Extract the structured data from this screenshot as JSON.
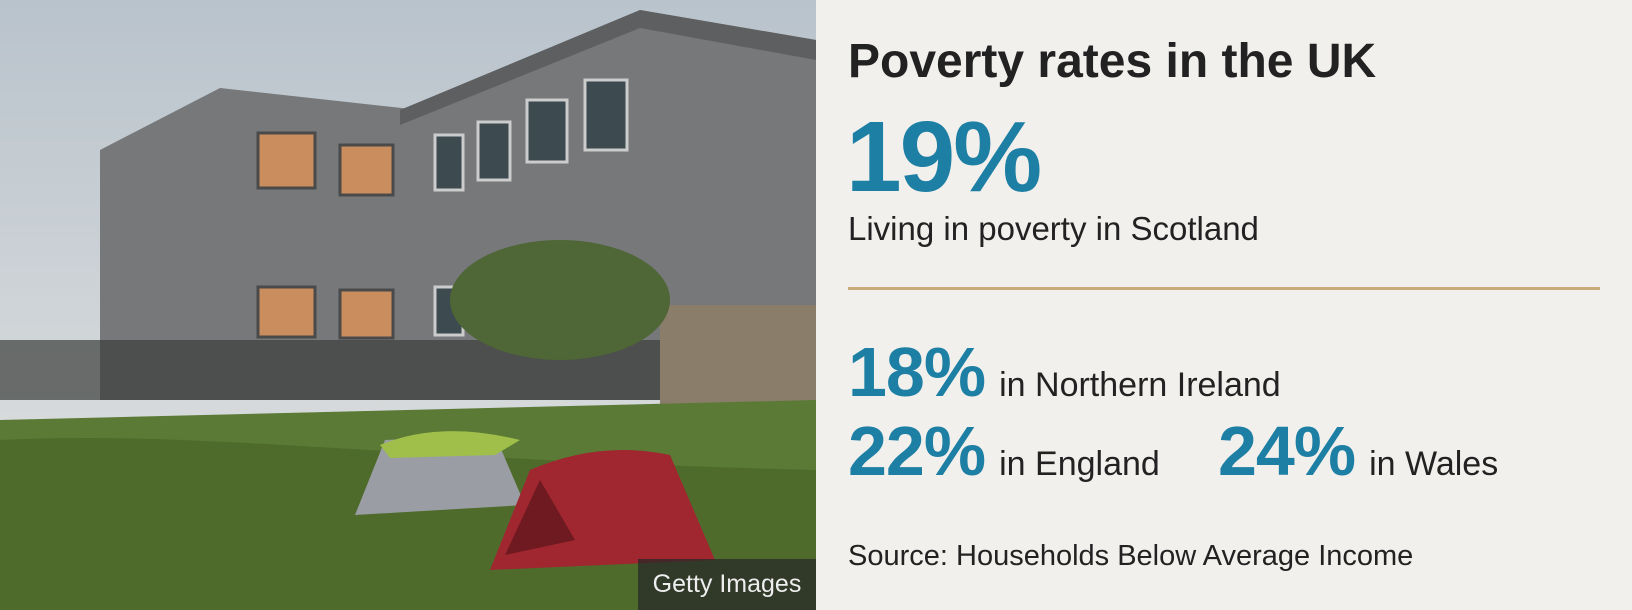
{
  "title": "Poverty rates in the UK",
  "headline": {
    "value": "19%",
    "label": "Living in poverty in Scotland"
  },
  "stats": [
    {
      "value": "18%",
      "label": "in Northern Ireland"
    },
    {
      "value": "22%",
      "label": "in England"
    },
    {
      "value": "24%",
      "label": "in Wales"
    }
  ],
  "source": "Source: Households Below Average Income",
  "photo_credit": "Getty Images"
}
